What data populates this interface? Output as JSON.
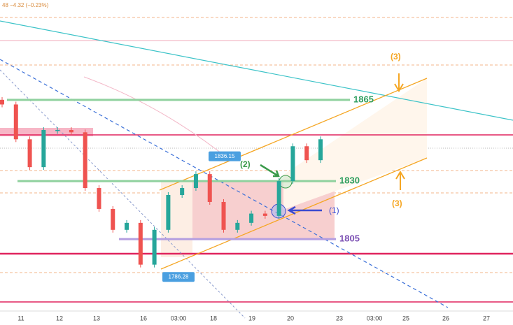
{
  "chart_data": {
    "type": "candlestick",
    "header": "48 −4.32 (−0.23%)",
    "x_labels": [
      "11",
      "12",
      "13",
      "16",
      "03:00",
      "18",
      "19",
      "20",
      "23",
      "03:00",
      "25",
      "26",
      "27"
    ],
    "ylim": [
      1768,
      1908
    ],
    "closes": [
      1863,
      1848,
      1836,
      1852,
      1852,
      1851,
      1827,
      1818,
      1809,
      1812,
      1794,
      1809,
      1824,
      1827,
      1833,
      1821,
      1809,
      1812,
      1816,
      1815,
      1830,
      1845,
      1839,
      1848
    ],
    "up_color": "#26a69a",
    "down_color": "#ef5350",
    "levels": [
      {
        "value": 1865,
        "color": "#2e9e5e",
        "line": "#8fd19e"
      },
      {
        "value": 1830,
        "color": "#2e9e5e",
        "line": "#8fd19e"
      },
      {
        "value": 1805,
        "color": "#7b4fb3",
        "line": "#b49ee0"
      }
    ],
    "price_tags": [
      1836.15,
      1786.28
    ],
    "annotations": [
      "(1)",
      "(2)",
      "(3)",
      "(3)"
    ]
  }
}
